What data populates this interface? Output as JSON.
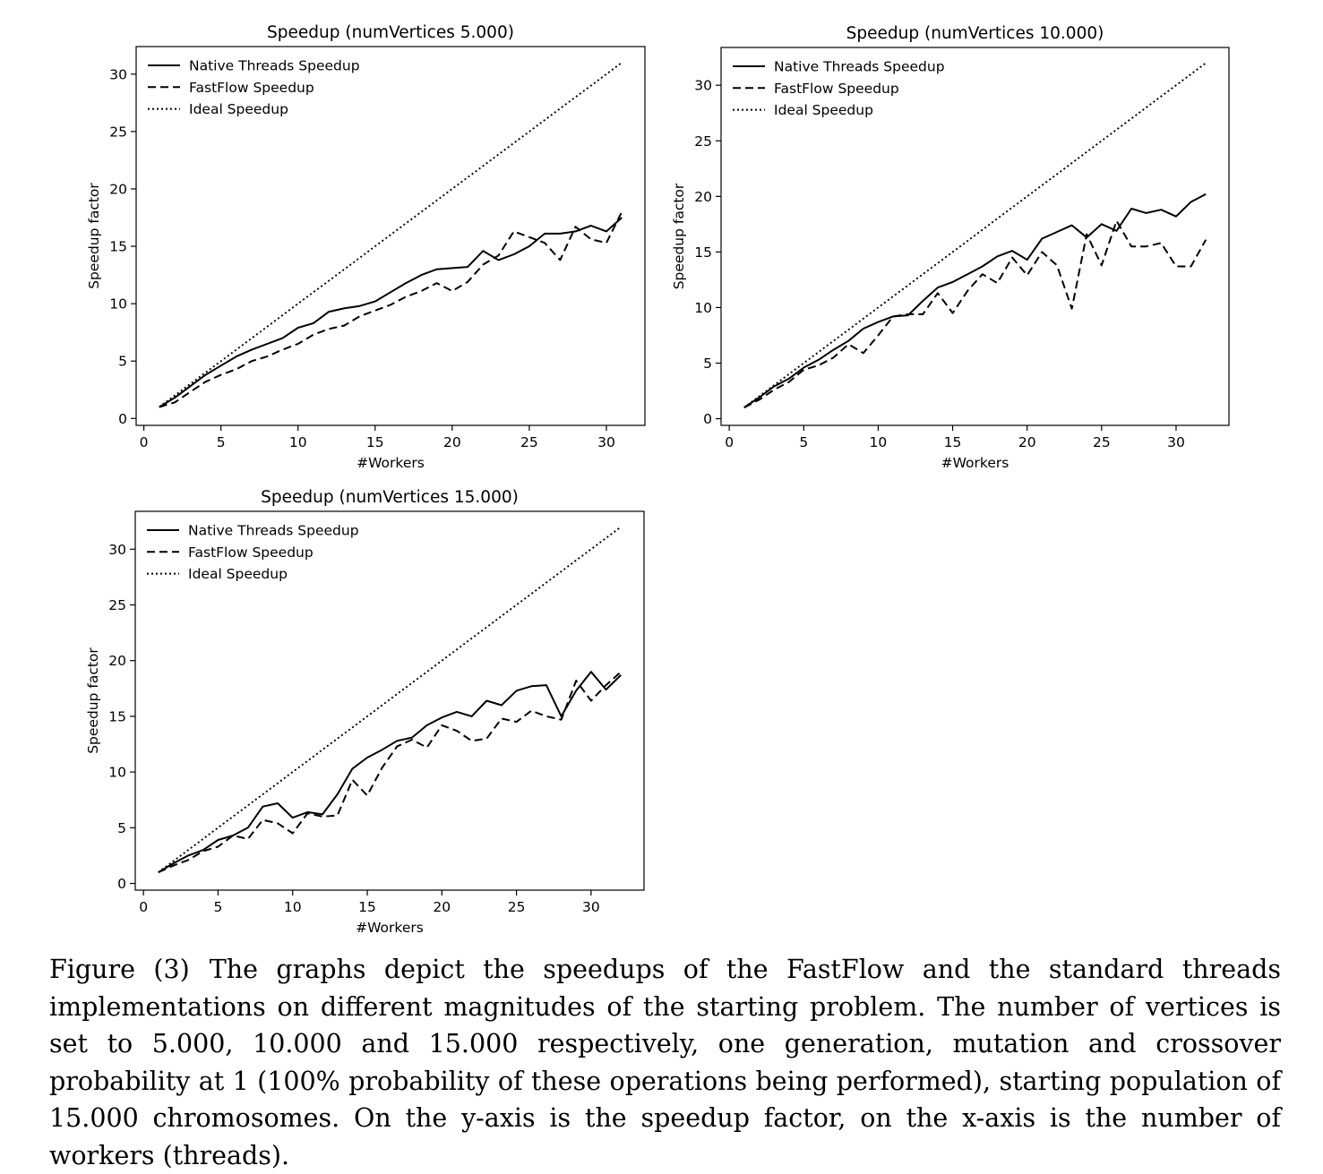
{
  "caption": {
    "label": "Figure (3)",
    "text": "The graphs depict the speedups of the FastFlow and the standard threads implementations on different magnitudes of the starting problem. The number of vertices is set to 5.000, 10.000 and 15.000 respectively, one generation, mutation and crossover probability at 1 (100% probability of these operations being performed), starting population of 15.000 chromosomes. On the y-axis is the speedup factor, on the x-axis is the number of workers (threads)."
  },
  "chart_data": [
    {
      "type": "line",
      "title": "Speedup (numVertices 5.000)",
      "xlabel": "#Workers",
      "ylabel": "Speedup factor",
      "xlim": [
        -0.5,
        32.5
      ],
      "ylim": [
        -0.6,
        32.4
      ],
      "xticks": [
        0,
        5,
        10,
        15,
        20,
        25,
        30
      ],
      "yticks": [
        0,
        5,
        10,
        15,
        20,
        25,
        30
      ],
      "grid": false,
      "legend": "top-left",
      "x": [
        1,
        2,
        3,
        4,
        5,
        6,
        7,
        8,
        9,
        10,
        11,
        12,
        13,
        14,
        15,
        16,
        17,
        18,
        19,
        20,
        21,
        22,
        23,
        24,
        25,
        26,
        27,
        28,
        29,
        30,
        31
      ],
      "series": [
        {
          "name": "Native Threads Speedup",
          "style": "solid",
          "values": [
            1.0,
            1.8,
            2.8,
            3.8,
            4.6,
            5.4,
            6.0,
            6.5,
            7.0,
            7.9,
            8.3,
            9.3,
            9.6,
            9.8,
            10.2,
            11.0,
            11.8,
            12.5,
            13.0,
            13.1,
            13.2,
            14.6,
            13.8,
            14.3,
            15.0,
            16.1,
            16.1,
            16.3,
            16.8,
            16.3,
            17.5
          ]
        },
        {
          "name": "FastFlow Speedup",
          "style": "dashed",
          "values": [
            1.0,
            1.4,
            2.3,
            3.2,
            3.8,
            4.3,
            5.0,
            5.4,
            6.0,
            6.5,
            7.3,
            7.8,
            8.1,
            8.9,
            9.4,
            9.9,
            10.6,
            11.1,
            11.8,
            11.1,
            11.9,
            13.4,
            14.2,
            16.3,
            15.8,
            15.3,
            13.8,
            16.7,
            15.6,
            15.3,
            18.0
          ]
        },
        {
          "name": "Ideal Speedup",
          "style": "dotted",
          "values": [
            1,
            2,
            3,
            4,
            5,
            6,
            7,
            8,
            9,
            10,
            11,
            12,
            13,
            14,
            15,
            16,
            17,
            18,
            19,
            20,
            21,
            22,
            23,
            24,
            25,
            26,
            27,
            28,
            29,
            30,
            31
          ]
        }
      ]
    },
    {
      "type": "line",
      "title": "Speedup (numVertices 10.000)",
      "xlabel": "#Workers",
      "ylabel": "Speedup factor",
      "xlim": [
        -0.55,
        33.55
      ],
      "ylim": [
        -0.6,
        33.4
      ],
      "xticks": [
        0,
        5,
        10,
        15,
        20,
        25,
        30
      ],
      "yticks": [
        0,
        5,
        10,
        15,
        20,
        25,
        30
      ],
      "grid": false,
      "legend": "top-left",
      "x": [
        1,
        2,
        3,
        4,
        5,
        6,
        7,
        8,
        9,
        10,
        11,
        12,
        13,
        14,
        15,
        16,
        17,
        18,
        19,
        20,
        21,
        22,
        23,
        24,
        25,
        26,
        27,
        28,
        29,
        30,
        31,
        32
      ],
      "series": [
        {
          "name": "Native Threads Speedup",
          "style": "solid",
          "values": [
            1.0,
            1.9,
            2.9,
            3.6,
            4.6,
            5.3,
            6.2,
            7.0,
            8.1,
            8.7,
            9.2,
            9.3,
            10.6,
            11.8,
            12.3,
            13.0,
            13.7,
            14.6,
            15.1,
            14.3,
            16.2,
            16.8,
            17.4,
            16.3,
            17.5,
            16.9,
            18.9,
            18.5,
            18.8,
            18.2,
            19.5,
            20.2
          ]
        },
        {
          "name": "FastFlow Speedup",
          "style": "dashed",
          "values": [
            1.0,
            1.7,
            2.6,
            3.3,
            4.4,
            4.8,
            5.5,
            6.7,
            5.9,
            7.5,
            9.2,
            9.4,
            9.4,
            11.3,
            9.5,
            11.5,
            13.0,
            12.2,
            14.5,
            12.9,
            15.0,
            13.8,
            9.9,
            16.6,
            13.8,
            17.8,
            15.5,
            15.5,
            15.8,
            13.7,
            13.7,
            16.1
          ]
        },
        {
          "name": "Ideal Speedup",
          "style": "dotted",
          "values": [
            1,
            2,
            3,
            4,
            5,
            6,
            7,
            8,
            9,
            10,
            11,
            12,
            13,
            14,
            15,
            16,
            17,
            18,
            19,
            20,
            21,
            22,
            23,
            24,
            25,
            26,
            27,
            28,
            29,
            30,
            31,
            32
          ]
        }
      ]
    },
    {
      "type": "line",
      "title": "Speedup (numVertices 15.000)",
      "xlabel": "#Workers",
      "ylabel": "Speedup factor",
      "xlim": [
        -0.55,
        33.55
      ],
      "ylim": [
        -0.6,
        33.4
      ],
      "xticks": [
        0,
        5,
        10,
        15,
        20,
        25,
        30
      ],
      "yticks": [
        0,
        5,
        10,
        15,
        20,
        25,
        30
      ],
      "grid": false,
      "legend": "top-left",
      "x": [
        1,
        2,
        3,
        4,
        5,
        6,
        7,
        8,
        9,
        10,
        11,
        12,
        13,
        14,
        15,
        16,
        17,
        18,
        19,
        20,
        21,
        22,
        23,
        24,
        25,
        26,
        27,
        28,
        29,
        30,
        31,
        32
      ],
      "series": [
        {
          "name": "Native Threads Speedup",
          "style": "solid",
          "values": [
            1.0,
            1.8,
            2.5,
            3.0,
            3.9,
            4.3,
            5.0,
            6.9,
            7.2,
            5.9,
            6.4,
            6.2,
            8.0,
            10.3,
            11.3,
            12.0,
            12.8,
            13.1,
            14.2,
            14.9,
            15.4,
            15.0,
            16.4,
            16.0,
            17.3,
            17.7,
            17.8,
            15.0,
            17.3,
            19.0,
            17.4,
            18.7
          ]
        },
        {
          "name": "FastFlow Speedup",
          "style": "dashed",
          "values": [
            1.0,
            1.6,
            2.1,
            2.9,
            3.3,
            4.3,
            4.0,
            5.7,
            5.4,
            4.5,
            6.3,
            6.0,
            6.1,
            9.3,
            7.9,
            10.4,
            12.3,
            12.9,
            12.2,
            14.2,
            13.7,
            12.8,
            13.0,
            14.8,
            14.5,
            15.5,
            15.0,
            14.7,
            18.2,
            16.4,
            17.8,
            19.0
          ]
        },
        {
          "name": "Ideal Speedup",
          "style": "dotted",
          "values": [
            1,
            2,
            3,
            4,
            5,
            6,
            7,
            8,
            9,
            10,
            11,
            12,
            13,
            14,
            15,
            16,
            17,
            18,
            19,
            20,
            21,
            22,
            23,
            24,
            25,
            26,
            27,
            28,
            29,
            30,
            31,
            32
          ]
        }
      ]
    }
  ]
}
